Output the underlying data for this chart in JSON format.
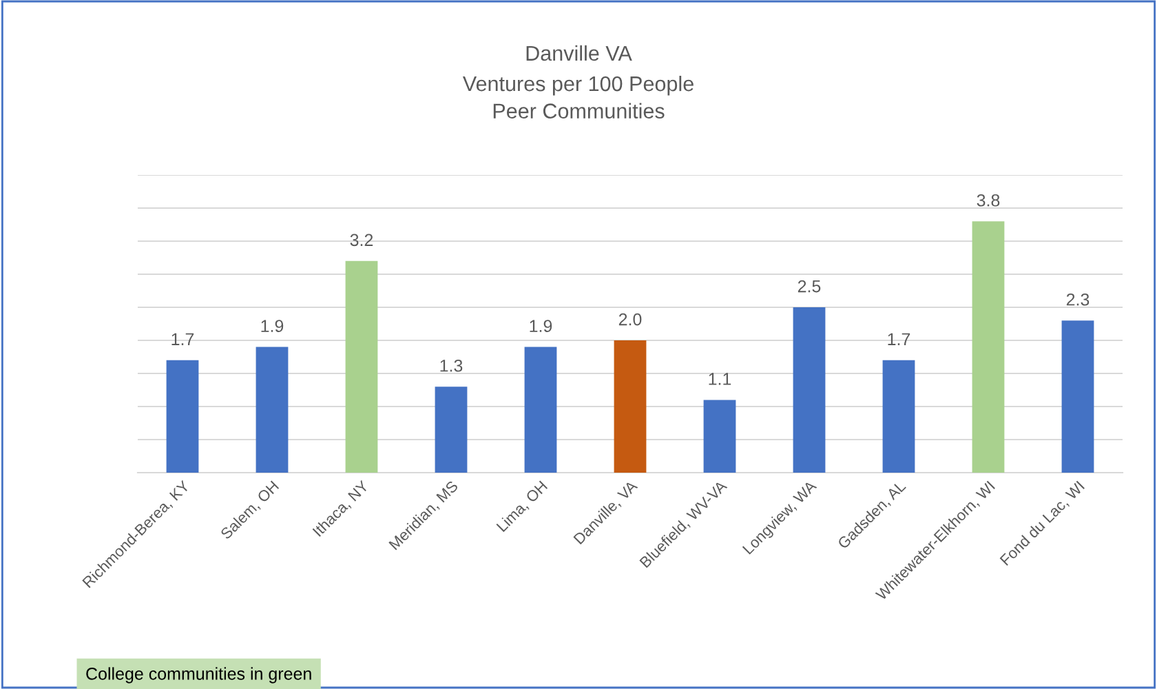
{
  "chart_data": {
    "type": "bar",
    "title": "Danville VA",
    "subtitle": "Ventures per 100 People\nPeer Communities",
    "categories": [
      "Richmond-Berea, KY",
      "Salem, OH",
      "Ithaca, NY",
      "Meridian, MS",
      "Lima, OH",
      "Danville, VA",
      "Bluefield, WV-VA",
      "Longview, WA",
      "Gadsden, AL",
      "Whitewater-Elkhorn, WI",
      "Fond du Lac, WI"
    ],
    "values": [
      1.7,
      1.9,
      3.2,
      1.3,
      1.9,
      2.0,
      1.1,
      2.5,
      1.7,
      3.8,
      2.3
    ],
    "value_labels": [
      "1.7",
      "1.9",
      "3.2",
      "1.3",
      "1.9",
      "2.0",
      "1.1",
      "2.5",
      "1.7",
      "3.8",
      "2.3"
    ],
    "colors": [
      "#4472c4",
      "#4472c4",
      "#a9d18e",
      "#4472c4",
      "#4472c4",
      "#c55a11",
      "#4472c4",
      "#4472c4",
      "#4472c4",
      "#a9d18e",
      "#4472c4"
    ],
    "ylim": [
      0,
      4.5
    ],
    "yticks": [
      {
        "value": 0,
        "label": null
      },
      {
        "value": 0.5,
        "label": null
      },
      {
        "value": 1,
        "label": null
      },
      {
        "value": 1.5,
        "label": null
      },
      {
        "value": 2,
        "label": null
      },
      {
        "value": 2.5,
        "label": null
      },
      {
        "value": 3,
        "label": null
      },
      {
        "value": 3.5,
        "label": null
      },
      {
        "value": 4,
        "label": null
      },
      {
        "value": 4.5,
        "label": null
      }
    ],
    "grid": "y",
    "tick_labels": "x",
    "annotations": [
      "College communities in green"
    ]
  }
}
